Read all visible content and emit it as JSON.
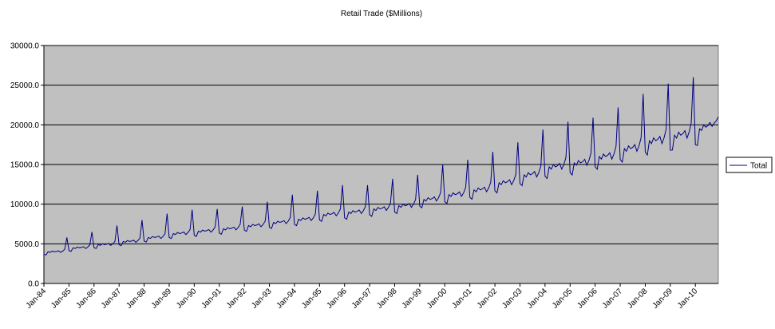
{
  "chart_data": {
    "type": "line",
    "title": "Retail Trade ($Millions)",
    "categories": [
      "Jan-84",
      null,
      null,
      null,
      null,
      null,
      null,
      null,
      null,
      null,
      null,
      null,
      "Jan-85",
      null,
      null,
      null,
      null,
      null,
      null,
      null,
      null,
      null,
      null,
      null,
      "Jan-86",
      null,
      null,
      null,
      null,
      null,
      null,
      null,
      null,
      null,
      null,
      null,
      "Jan-87",
      null,
      null,
      null,
      null,
      null,
      null,
      null,
      null,
      null,
      null,
      null,
      "Jan-88",
      null,
      null,
      null,
      null,
      null,
      null,
      null,
      null,
      null,
      null,
      null,
      "Jan-89",
      null,
      null,
      null,
      null,
      null,
      null,
      null,
      null,
      null,
      null,
      null,
      "Jan-90",
      null,
      null,
      null,
      null,
      null,
      null,
      null,
      null,
      null,
      null,
      null,
      "Jan-91",
      null,
      null,
      null,
      null,
      null,
      null,
      null,
      null,
      null,
      null,
      null,
      "Jan-92",
      null,
      null,
      null,
      null,
      null,
      null,
      null,
      null,
      null,
      null,
      null,
      "Jan-93",
      null,
      null,
      null,
      null,
      null,
      null,
      null,
      null,
      null,
      null,
      null,
      "Jan-94",
      null,
      null,
      null,
      null,
      null,
      null,
      null,
      null,
      null,
      null,
      null,
      "Jan-95",
      null,
      null,
      null,
      null,
      null,
      null,
      null,
      null,
      null,
      null,
      null,
      "Jan-96",
      null,
      null,
      null,
      null,
      null,
      null,
      null,
      null,
      null,
      null,
      null,
      "Jan-97",
      null,
      null,
      null,
      null,
      null,
      null,
      null,
      null,
      null,
      null,
      null,
      "Jan-98",
      null,
      null,
      null,
      null,
      null,
      null,
      null,
      null,
      null,
      null,
      null,
      "Jan-99",
      null,
      null,
      null,
      null,
      null,
      null,
      null,
      null,
      null,
      null,
      null,
      "Jan-00",
      null,
      null,
      null,
      null,
      null,
      null,
      null,
      null,
      null,
      null,
      null,
      "Jan-01",
      null,
      null,
      null,
      null,
      null,
      null,
      null,
      null,
      null,
      null,
      null,
      "Jan-02",
      null,
      null,
      null,
      null,
      null,
      null,
      null,
      null,
      null,
      null,
      null,
      "Jan-03",
      null,
      null,
      null,
      null,
      null,
      null,
      null,
      null,
      null,
      null,
      null,
      "Jan-04",
      null,
      null,
      null,
      null,
      null,
      null,
      null,
      null,
      null,
      null,
      null,
      "Jan-05",
      null,
      null,
      null,
      null,
      null,
      null,
      null,
      null,
      null,
      null,
      null,
      "Jan-06",
      null,
      null,
      null,
      null,
      null,
      null,
      null,
      null,
      null,
      null,
      null,
      "Jan-07",
      null,
      null,
      null,
      null,
      null,
      null,
      null,
      null,
      null,
      null,
      null,
      "Jan-08",
      null,
      null,
      null,
      null,
      null,
      null,
      null,
      null,
      null,
      null,
      null,
      "Jan-09",
      null,
      null,
      null,
      null,
      null,
      null,
      null,
      null,
      null,
      null,
      null,
      "Jan-10",
      null,
      null,
      null,
      null,
      null,
      null,
      null,
      null,
      null,
      null,
      null
    ],
    "series": [
      {
        "name": "Total",
        "color": "#000080",
        "values": [
          3680,
          3600,
          4000,
          3920,
          4080,
          4000,
          4040,
          4120,
          3920,
          4080,
          4320,
          5800,
          4140,
          4050,
          4500,
          4410,
          4590,
          4500,
          4550,
          4640,
          4410,
          4590,
          4860,
          6500,
          4510,
          4410,
          4900,
          4800,
          5000,
          4900,
          4950,
          5050,
          4800,
          5000,
          5290,
          7300,
          4880,
          4770,
          5300,
          5190,
          5410,
          5300,
          5350,
          5460,
          5190,
          5410,
          5720,
          8000,
          5340,
          5220,
          5800,
          5680,
          5920,
          5800,
          5860,
          5970,
          5680,
          5920,
          6260,
          8800,
          5800,
          5670,
          6300,
          6170,
          6430,
          6300,
          6360,
          6490,
          6170,
          6430,
          6800,
          9300,
          6070,
          5940,
          6600,
          6470,
          6730,
          6600,
          6670,
          6800,
          6470,
          6730,
          7130,
          9400,
          6350,
          6210,
          6900,
          6760,
          7040,
          6900,
          6970,
          7110,
          6760,
          7040,
          7450,
          9700,
          6720,
          6570,
          7300,
          7150,
          7450,
          7300,
          7370,
          7520,
          7150,
          7450,
          7880,
          10300,
          7080,
          6930,
          7700,
          7550,
          7850,
          7700,
          7780,
          7930,
          7550,
          7850,
          8320,
          11200,
          7450,
          7290,
          8100,
          7940,
          8260,
          8100,
          8180,
          8340,
          7940,
          8260,
          8750,
          11700,
          8000,
          7830,
          8700,
          8530,
          8870,
          8700,
          8790,
          8960,
          8530,
          8870,
          9400,
          12400,
          8280,
          8100,
          9000,
          8820,
          9180,
          9000,
          9090,
          9270,
          8820,
          9180,
          9720,
          12400,
          8650,
          8460,
          9400,
          9210,
          9590,
          9400,
          9490,
          9680,
          9210,
          9590,
          10150,
          13200,
          9020,
          8820,
          9800,
          9600,
          10000,
          9800,
          9900,
          10090,
          9600,
          10000,
          10580,
          13700,
          9750,
          9540,
          10600,
          10390,
          10810,
          10600,
          10710,
          10920,
          10390,
          10810,
          11450,
          15000,
          10300,
          10080,
          11200,
          10980,
          11420,
          11200,
          11310,
          11540,
          10980,
          11420,
          12100,
          15600,
          10860,
          10620,
          11800,
          11560,
          12040,
          11800,
          11920,
          12150,
          11560,
          12040,
          12740,
          16600,
          11680,
          11430,
          12700,
          12450,
          12950,
          12700,
          12830,
          13080,
          12450,
          12950,
          13720,
          17800,
          12600,
          12330,
          13700,
          13430,
          13970,
          13700,
          13840,
          14110,
          13430,
          13970,
          14800,
          19400,
          13520,
          13230,
          14700,
          14410,
          14990,
          14700,
          14850,
          15140,
          14410,
          14990,
          15880,
          20400,
          13980,
          13680,
          15200,
          14900,
          15500,
          15200,
          15350,
          15660,
          14900,
          15500,
          16420,
          20900,
          14720,
          14400,
          16000,
          15680,
          16320,
          16000,
          16160,
          16480,
          15680,
          16320,
          17280,
          22200,
          15640,
          15300,
          17000,
          16660,
          17340,
          17000,
          17170,
          17510,
          16660,
          17340,
          18360,
          23900,
          16560,
          16200,
          18000,
          17640,
          18360,
          18000,
          18180,
          18540,
          17640,
          18360,
          19440,
          25200,
          16800,
          16830,
          18700,
          18330,
          19070,
          18700,
          18890,
          19260,
          18330,
          19070,
          20200,
          26000,
          17500,
          17400,
          19500,
          19300,
          20000,
          19700,
          19900,
          20300,
          19800,
          20200,
          20500,
          21000
        ]
      }
    ],
    "ylim": [
      0,
      30000
    ],
    "yticks": [
      {
        "value": 0,
        "label": "0.0"
      },
      {
        "value": 5000,
        "label": "5000.0"
      },
      {
        "value": 10000,
        "label": "10000.0"
      },
      {
        "value": 15000,
        "label": "15000.0"
      },
      {
        "value": 20000,
        "label": "20000.0"
      },
      {
        "value": 25000,
        "label": "25000.0"
      },
      {
        "value": 30000,
        "label": "30000.0"
      }
    ],
    "grid": true,
    "legend": "right"
  }
}
